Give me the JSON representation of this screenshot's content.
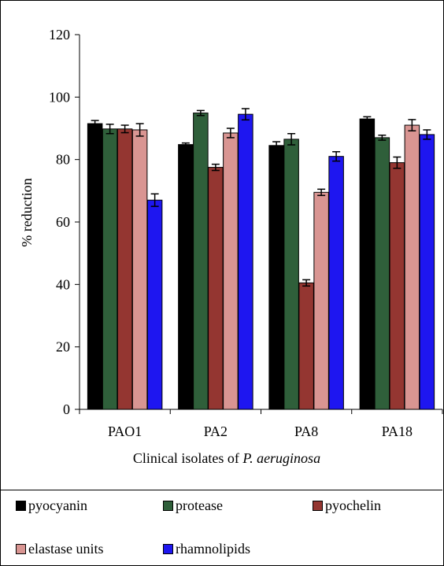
{
  "chart_data": {
    "type": "bar",
    "title": "",
    "ylabel": "% reduction",
    "xlabel_prefix": "Clinical isolates of ",
    "xlabel_italic": "P. aeruginosa",
    "ylim": [
      0,
      120
    ],
    "yticks": [
      0,
      20,
      40,
      60,
      80,
      100,
      120
    ],
    "grid": false,
    "legend_position": "bottom",
    "categories": [
      "PAO1",
      "PA2",
      "PA8",
      "PA18"
    ],
    "series": [
      {
        "name": "pyocyanin",
        "color": "#000000",
        "values": [
          91.5,
          84.8,
          84.5,
          93.0
        ],
        "errors": [
          1.0,
          0.5,
          1.2,
          0.7
        ]
      },
      {
        "name": "protease",
        "color": "#2f5f3a",
        "values": [
          89.8,
          94.9,
          86.5,
          87.0
        ],
        "errors": [
          1.5,
          0.8,
          1.8,
          0.8
        ]
      },
      {
        "name": "pyochelin",
        "color": "#943631",
        "values": [
          89.8,
          77.5,
          40.5,
          79.0
        ],
        "errors": [
          1.2,
          1.0,
          1.0,
          1.8
        ]
      },
      {
        "name": "elastase units",
        "color": "#d99592",
        "values": [
          89.5,
          88.5,
          69.5,
          91.0
        ],
        "errors": [
          2.0,
          1.5,
          1.0,
          1.8
        ]
      },
      {
        "name": "rhamnolipids",
        "color": "#1e16f0",
        "values": [
          67.0,
          94.5,
          81.0,
          88.0
        ],
        "errors": [
          2.0,
          1.8,
          1.5,
          1.5
        ]
      }
    ]
  }
}
